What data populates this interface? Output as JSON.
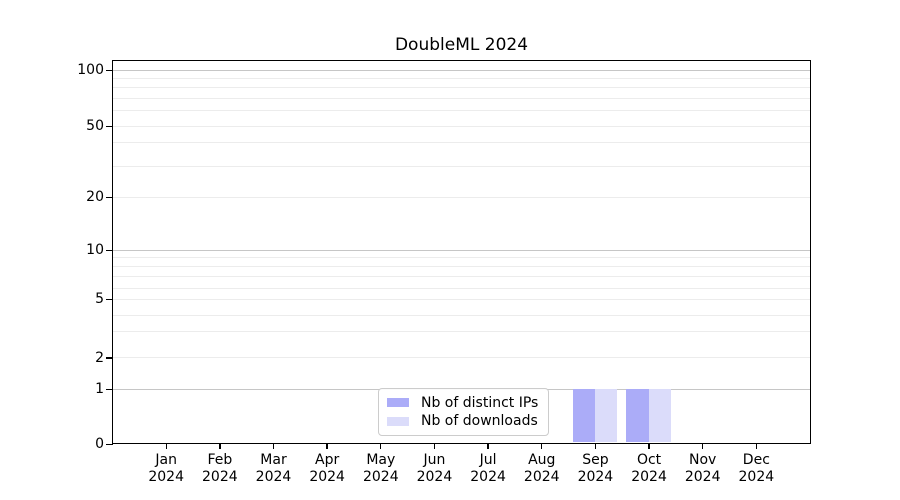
{
  "chart_data": {
    "type": "bar",
    "title": "DoubleML 2024",
    "x_axis": {
      "months": [
        "Jan",
        "Feb",
        "Mar",
        "Apr",
        "May",
        "Jun",
        "Jul",
        "Aug",
        "Sep",
        "Oct",
        "Nov",
        "Dec"
      ],
      "year": "2024"
    },
    "y_axis": {
      "scale": "symlog-like",
      "tick_values": [
        0,
        1,
        2,
        5,
        10,
        20,
        50,
        100
      ],
      "major_grid_values": [
        1,
        10,
        100
      ],
      "minor_grid_values": [
        2,
        3,
        4,
        5,
        6,
        7,
        8,
        9,
        20,
        30,
        40,
        50,
        60,
        70,
        80,
        90
      ],
      "ylim": [
        0,
        112
      ],
      "grid": true
    },
    "series": [
      {
        "name": "Nb of distinct IPs",
        "color": "#abacf8",
        "values": [
          0,
          0,
          0,
          0,
          0,
          0,
          0,
          0,
          1,
          1,
          0,
          0
        ]
      },
      {
        "name": "Nb of downloads",
        "color": "#dbdcfa",
        "values": [
          0,
          0,
          0,
          0,
          0,
          0,
          0,
          0,
          1,
          1,
          0,
          0
        ]
      }
    ],
    "legend": {
      "position": "lower center",
      "items": [
        "Nb of distinct IPs",
        "Nb of downloads"
      ]
    },
    "colors": {
      "grid_major": "#c6c6c6",
      "grid_minor": "#ececec",
      "axis": "#000000",
      "background": "#ffffff"
    }
  }
}
